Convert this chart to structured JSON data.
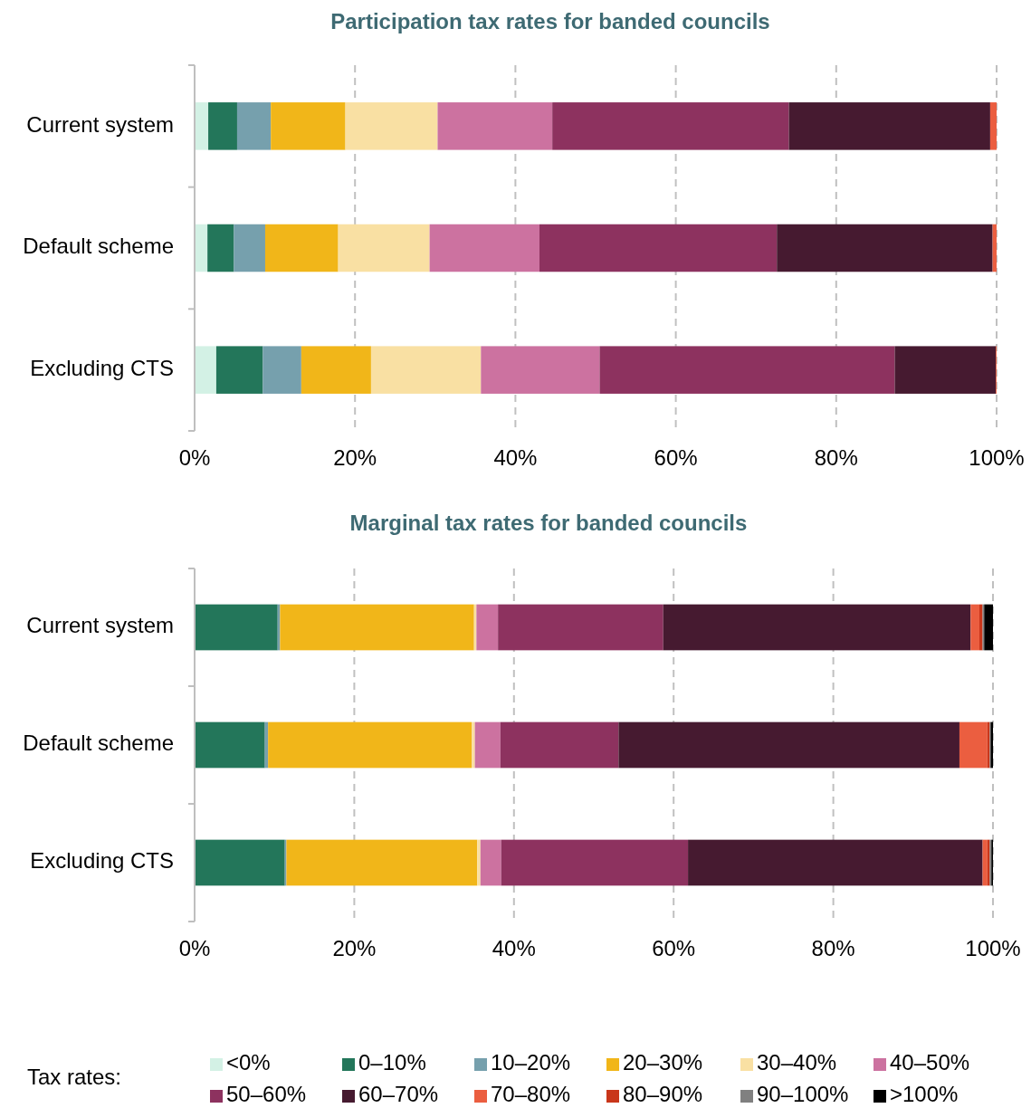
{
  "chart_data": [
    {
      "type": "bar",
      "orientation": "horizontal",
      "stacked": true,
      "title": "Participation tax rates for banded councils",
      "categories": [
        "Current system",
        "Default scheme",
        "Excluding CTS"
      ],
      "xlim": [
        0,
        100
      ],
      "xticks": [
        {
          "value": 0,
          "label": "0%"
        },
        {
          "value": 20,
          "label": "20%"
        },
        {
          "value": 40,
          "label": "40%"
        },
        {
          "value": 60,
          "label": "60%"
        },
        {
          "value": 80,
          "label": "80%"
        },
        {
          "value": 100,
          "label": "100%"
        }
      ],
      "grid": "x",
      "series": [
        {
          "color": "#d3f1e5",
          "values": [
            1.7,
            1.6,
            2.7
          ]
        },
        {
          "color": "#23765a",
          "values": [
            3.6,
            3.3,
            5.8
          ]
        },
        {
          "color": "#76a0ad",
          "values": [
            4.2,
            3.9,
            4.8
          ]
        },
        {
          "color": "#f1b619",
          "values": [
            9.3,
            9.1,
            8.7
          ]
        },
        {
          "color": "#f9e0a3",
          "values": [
            11.5,
            11.4,
            13.7
          ]
        },
        {
          "color": "#cc72a0",
          "values": [
            14.3,
            13.7,
            14.8
          ]
        },
        {
          "color": "#8d325f",
          "values": [
            29.5,
            29.6,
            36.8
          ]
        },
        {
          "color": "#461a30",
          "values": [
            25.1,
            26.9,
            12.6
          ]
        },
        {
          "color": "#eb5e40",
          "values": [
            0.8,
            0.5,
            0.1
          ]
        }
      ]
    },
    {
      "type": "bar",
      "orientation": "horizontal",
      "stacked": true,
      "title": "Marginal tax rates for banded councils",
      "categories": [
        "Current system",
        "Default scheme",
        "Excluding CTS"
      ],
      "xlim": [
        0,
        100
      ],
      "xticks": [
        {
          "value": 0,
          "label": "0%"
        },
        {
          "value": 20,
          "label": "20%"
        },
        {
          "value": 40,
          "label": "40%"
        },
        {
          "value": 60,
          "label": "60%"
        },
        {
          "value": 80,
          "label": "80%"
        },
        {
          "value": 100,
          "label": "100%"
        }
      ],
      "grid": "x",
      "legend": "bottom",
      "legend_title": "Tax rates:",
      "series": [
        {
          "name": "<0%",
          "color": "#d3f1e5",
          "values": [
            0,
            0,
            0
          ]
        },
        {
          "name": "0–10%",
          "color": "#23765a",
          "values": [
            10.4,
            8.8,
            11.3
          ]
        },
        {
          "name": "10–20%",
          "color": "#76a0ad",
          "values": [
            0.3,
            0.4,
            0.2
          ]
        },
        {
          "name": "20–30%",
          "color": "#f1b619",
          "values": [
            24.3,
            25.5,
            23.9
          ]
        },
        {
          "name": "30–40%",
          "color": "#f9e0a3",
          "values": [
            0.3,
            0.4,
            0.4
          ]
        },
        {
          "name": "40–50%",
          "color": "#cc72a0",
          "values": [
            2.7,
            3.2,
            2.6
          ]
        },
        {
          "name": "50–60%",
          "color": "#8d325f",
          "values": [
            20.7,
            14.8,
            23.4
          ]
        },
        {
          "name": "60–70%",
          "color": "#461a30",
          "values": [
            38.5,
            42.7,
            36.9
          ]
        },
        {
          "name": "70–80%",
          "color": "#eb5e40",
          "values": [
            1.1,
            3.5,
            0.6
          ]
        },
        {
          "name": "80–90%",
          "color": "#c9361a",
          "values": [
            0.4,
            0.3,
            0.3
          ]
        },
        {
          "name": "90–100%",
          "color": "#808080",
          "values": [
            0.2,
            0.1,
            0.2
          ]
        },
        {
          "name": ">100%",
          "color": "#000000",
          "values": [
            1.1,
            0.3,
            0.2
          ]
        }
      ]
    }
  ]
}
